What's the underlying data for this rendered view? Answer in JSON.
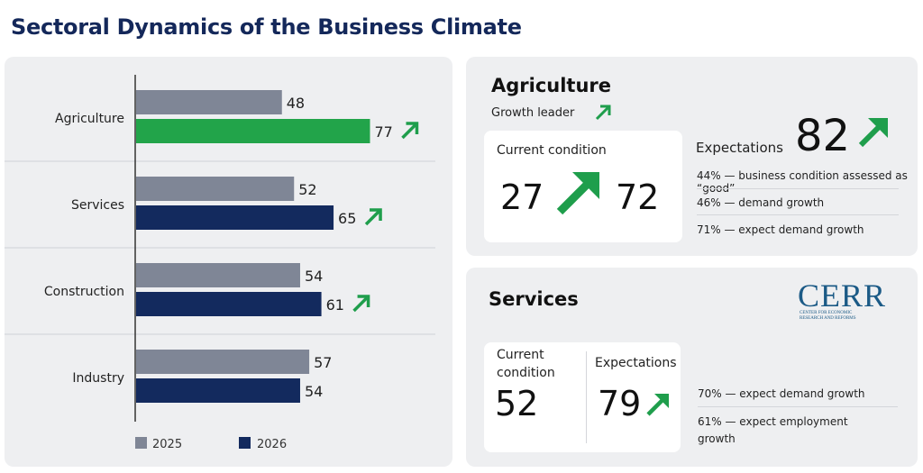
{
  "title": "Sectoral Dynamics of the Business Climate",
  "colors": {
    "y2025": "#7f8696",
    "y2026": "#132a5e",
    "highlight": "#22a44a",
    "arrow": "#1f9e4c"
  },
  "chart_data": {
    "type": "bar",
    "orientation": "horizontal",
    "categories": [
      "Agriculture",
      "Services",
      "Construction",
      "Industry"
    ],
    "series": [
      {
        "name": "2025",
        "values": [
          48,
          52,
          54,
          57
        ]
      },
      {
        "name": "2026",
        "values": [
          77,
          65,
          61,
          54
        ]
      }
    ],
    "arrows_2026": [
      true,
      true,
      true,
      false
    ],
    "highlight_category": "Agriculture",
    "legend_position": "bottom"
  },
  "agriculture": {
    "heading": "Agriculture",
    "tag": "Growth leader",
    "current_label": "Current condition",
    "current_from": "27",
    "current_to": "72",
    "expectations_label": "Expectations",
    "expectations_value": "82",
    "notes": [
      "44% — business condition assessed as “good”",
      "46% — demand growth",
      "71% — expect demand growth"
    ]
  },
  "services": {
    "heading": "Services",
    "current_label_1": "Current",
    "current_label_2": "condition",
    "current_value": "52",
    "expectations_label": "Expectations",
    "expectations_value": "79",
    "notes": [
      "70% — expect demand growth",
      "61% — expect employment",
      "growth"
    ]
  },
  "logo": {
    "name": "CERR",
    "sub_line_1": "CENTER FOR ECONOMIC",
    "sub_line_2": "RESEARCH AND REFORMS"
  }
}
